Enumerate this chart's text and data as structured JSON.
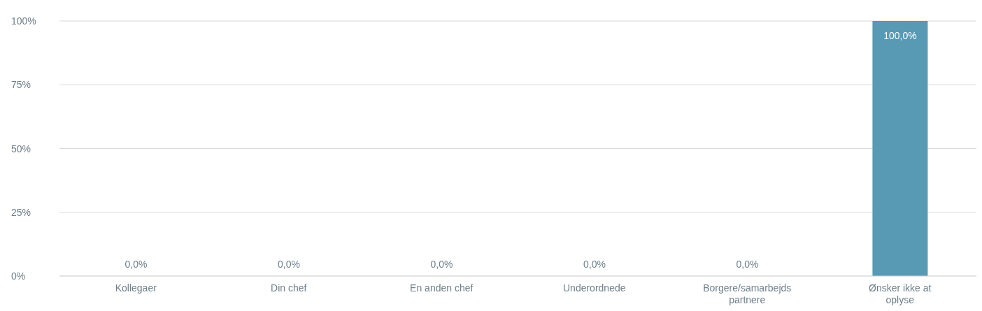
{
  "chart_data": {
    "type": "bar",
    "categories": [
      "Kollegaer",
      "Din chef",
      "En anden chef",
      "Underordnede",
      "Borgere/samarbejds partnere",
      "Ønsker ikke at oplyse"
    ],
    "values": [
      0,
      0,
      0,
      0,
      0,
      100
    ],
    "color": "#5899b4",
    "value_labels": [
      "0,0%",
      "0,0%",
      "0,0%",
      "0,0%",
      "0,0%",
      "100,0%"
    ],
    "ylim": [
      0,
      100
    ],
    "yticks": [
      {
        "value": 0,
        "label": "0%"
      },
      {
        "value": 25,
        "label": "25%"
      },
      {
        "value": 50,
        "label": "50%"
      },
      {
        "value": 75,
        "label": "75%"
      },
      {
        "value": 100,
        "label": "100%"
      }
    ],
    "grid": "y"
  }
}
